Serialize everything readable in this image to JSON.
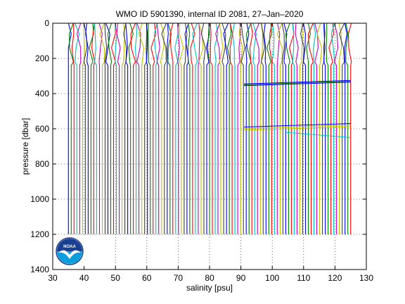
{
  "chart_data": {
    "type": "line",
    "title": "WMO ID 5901390, internal ID 2081, 27–Jan–2020",
    "xlabel": "salinity [psu]",
    "ylabel": "pressure [dbar]",
    "xlim": [
      30,
      130
    ],
    "ylim": [
      0,
      1400
    ],
    "y_reversed": true,
    "x_ticks": [
      30,
      40,
      50,
      60,
      70,
      80,
      90,
      100,
      110,
      120,
      130
    ],
    "y_ticks": [
      0,
      200,
      400,
      600,
      800,
      1000,
      1200,
      1400
    ],
    "grid": "dotted",
    "profiles": {
      "x_start": 35,
      "x_end": 125.5,
      "x_step": 0.9,
      "p_top": 0,
      "p_bottom": 1200,
      "colors": [
        "#0000ff",
        "#008000",
        "#ff0000",
        "#00bfbf",
        "#bf00bf",
        "#bfbf00",
        "#404040"
      ]
    },
    "overlay_lines": [
      {
        "color": "#0000ff",
        "x": [
          91,
          125
        ],
        "y": [
          345,
          325
        ]
      },
      {
        "color": "#0000ff",
        "x": [
          91,
          125
        ],
        "y": [
          355,
          335
        ]
      },
      {
        "color": "#008000",
        "x": [
          91,
          125
        ],
        "y": [
          350,
          330
        ]
      },
      {
        "color": "#bfbf00",
        "x": [
          91,
          125
        ],
        "y": [
          598,
          578
        ]
      },
      {
        "color": "#bfbf00",
        "x": [
          91,
          125
        ],
        "y": [
          608,
          588
        ]
      },
      {
        "color": "#00bfbf",
        "x": [
          104,
          125
        ],
        "y": [
          620,
          650
        ]
      },
      {
        "color": "#0000ff",
        "x": [
          91,
          125
        ],
        "y": [
          590,
          570
        ]
      }
    ]
  },
  "logo": {
    "text": "NOAA",
    "colors": {
      "top": "#1a3f8f",
      "bottom": "#0a9fdc",
      "bird": "#ffffff"
    }
  }
}
